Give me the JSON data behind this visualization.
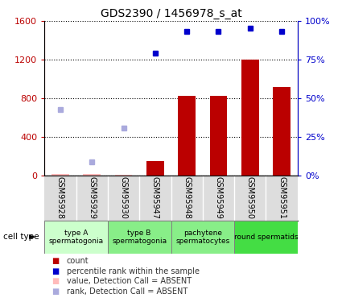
{
  "title": "GDS2390 / 1456978_s_at",
  "samples": [
    "GSM95928",
    "GSM95929",
    "GSM95930",
    "GSM95947",
    "GSM95948",
    "GSM95949",
    "GSM95950",
    "GSM95951"
  ],
  "bar_values": [
    10,
    15,
    8,
    150,
    820,
    820,
    1200,
    920
  ],
  "bar_absent": [
    true,
    true,
    true,
    false,
    false,
    false,
    false,
    false
  ],
  "rank_values": [
    null,
    null,
    null,
    1270,
    1490,
    1490,
    1530,
    1490
  ],
  "rank_absent": [
    680,
    140,
    490,
    null,
    null,
    null,
    null,
    null
  ],
  "ylim_left": [
    0,
    1600
  ],
  "ylim_right": [
    0,
    100
  ],
  "yticks_left": [
    0,
    400,
    800,
    1200,
    1600
  ],
  "yticks_right": [
    0,
    25,
    50,
    75,
    100
  ],
  "yticklabels_left": [
    "0",
    "400",
    "800",
    "1200",
    "1600"
  ],
  "yticklabels_right": [
    "0%",
    "25%",
    "50%",
    "75%",
    "100%"
  ],
  "bar_color": "#bb0000",
  "bar_absent_color": "#ffbbbb",
  "rank_color": "#0000cc",
  "rank_absent_color": "#aaaadd",
  "ct_boundaries": [
    {
      "xstart": -0.5,
      "xend": 1.5,
      "label": "type A\nspermatogonia",
      "color": "#ccffcc"
    },
    {
      "xstart": 1.5,
      "xend": 3.5,
      "label": "type B\nspermatogonia",
      "color": "#88ee88"
    },
    {
      "xstart": 3.5,
      "xend": 5.5,
      "label": "pachytene\nspermatocytes",
      "color": "#88ee88"
    },
    {
      "xstart": 5.5,
      "xend": 7.5,
      "label": "round spermatids",
      "color": "#44dd44"
    }
  ],
  "legend_items": [
    {
      "label": "count",
      "color": "#bb0000"
    },
    {
      "label": "percentile rank within the sample",
      "color": "#0000cc"
    },
    {
      "label": "value, Detection Call = ABSENT",
      "color": "#ffbbbb"
    },
    {
      "label": "rank, Detection Call = ABSENT",
      "color": "#aaaadd"
    }
  ],
  "cell_type_label": "cell type",
  "xtick_bg_color": "#dddddd",
  "sample_markersize": 5
}
